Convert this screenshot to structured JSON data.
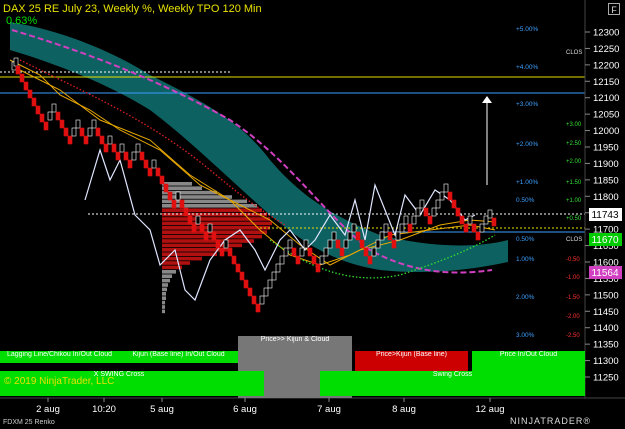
{
  "header": {
    "title": "DAX 25 RE July 23, Weekly %, Weekly TPO 120 Min",
    "change_pct": "0.63%"
  },
  "window": {
    "maximize_glyph": "F",
    "maximize_icon": "maximize-icon"
  },
  "price_axis": {
    "min": 11200,
    "max": 12350,
    "ticks": [
      "12300",
      "12250",
      "12200",
      "12150",
      "12100",
      "12050",
      "12000",
      "11950",
      "11900",
      "11850",
      "11800",
      "11750",
      "11700",
      "11650",
      "11600",
      "11550",
      "11500",
      "11450",
      "11400",
      "11350",
      "11300",
      "11250"
    ],
    "current_price": "11743",
    "kijun_price": "11670",
    "tenkan_price": "11564"
  },
  "weekly_pct": {
    "labels": [
      "+5.00%",
      "+4.00%",
      "+3.00%",
      "+2.00%",
      "+1.00%",
      "0.50%",
      "0.50%",
      "1.00%",
      "2.00%",
      "3.00%"
    ],
    "side_label": "CLOS"
  },
  "daily_pct": {
    "labels": [
      "+3.00",
      "+2.50",
      "+2.00",
      "+1.50",
      "+1.00",
      "+0.50",
      "-0.50",
      "-1.00",
      "-1.50",
      "-2.00",
      "-2.50",
      "-3.00"
    ]
  },
  "time_axis": {
    "labels": [
      "2 aug",
      "10:20",
      "5 aug",
      "6 aug",
      "7 aug",
      "8 aug",
      "12 aug"
    ]
  },
  "signals": {
    "row1": [
      "Lagging Line/Chikou In/Out Cloud",
      "Kijun (Base line) In/Out Cloud",
      "Price>> Kijun & Cloud",
      "Price>Kijun (Base line)",
      "Price In/Out Cloud"
    ],
    "row2": [
      "X SWING Cross",
      "Swing Cross"
    ]
  },
  "colors": {
    "background": "#000000",
    "bull_renko": "#ffffff",
    "bear_renko": "#e01010",
    "cloud": "#0f6b6b",
    "kijun": "#e8a800",
    "lagging": "#dfe6ff",
    "weekly_lines": "#e8e000",
    "signal_green": "#00dd00",
    "signal_red": "#cc0000",
    "signal_gray": "#777777"
  },
  "footer": {
    "instrument": "FDXM 25 Renko",
    "copyright": "© 2019 NinjaTrader, LLC",
    "logo": "NINJATRADER®"
  }
}
